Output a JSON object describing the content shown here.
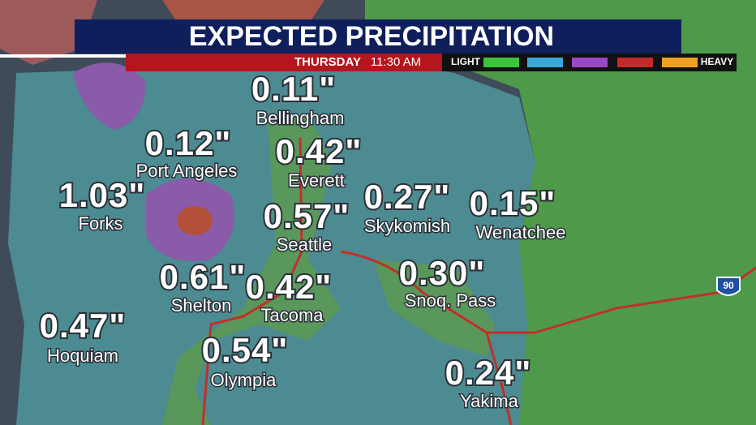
{
  "header": {
    "title": "EXPECTED PRECIPITATION",
    "day": "THURSDAY",
    "time": "11:30 AM"
  },
  "legend": {
    "low_label": "LIGHT",
    "high_label": "HEAVY"
  },
  "highway_shield": "90",
  "cities": [
    {
      "amount": "0.11\"",
      "name": "Bellingham"
    },
    {
      "amount": "0.12\"",
      "name": "Port Angeles"
    },
    {
      "amount": "0.42\"",
      "name": "Everett"
    },
    {
      "amount": "1.03\"",
      "name": "Forks"
    },
    {
      "amount": "0.27\"",
      "name": "Skykomish"
    },
    {
      "amount": "0.15\"",
      "name": "Wenatchee"
    },
    {
      "amount": "0.57\"",
      "name": "Seattle"
    },
    {
      "amount": "0.30\"",
      "name": "Snoq. Pass"
    },
    {
      "amount": "0.61\"",
      "name": "Shelton"
    },
    {
      "amount": "0.42\"",
      "name": "Tacoma"
    },
    {
      "amount": "0.47\"",
      "name": "Hoquiam"
    },
    {
      "amount": "0.54\"",
      "name": "Olympia"
    },
    {
      "amount": "0.24\"",
      "name": "Yakima"
    }
  ]
}
